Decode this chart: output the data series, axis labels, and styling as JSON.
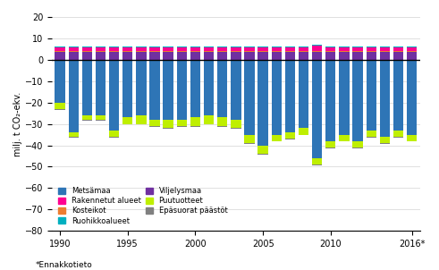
{
  "years": [
    1990,
    1991,
    1992,
    1993,
    1994,
    1995,
    1996,
    1997,
    1998,
    1999,
    2000,
    2001,
    2002,
    2003,
    2004,
    2005,
    2006,
    2007,
    2008,
    2009,
    2010,
    2011,
    2012,
    2013,
    2014,
    2015,
    2016
  ],
  "metsamaa": [
    -20,
    -34,
    -26,
    -26,
    -33,
    -27,
    -26,
    -28,
    -28,
    -28,
    -27,
    -26,
    -27,
    -28,
    -35,
    -40,
    -35,
    -34,
    -32,
    -46,
    -38,
    -35,
    -38,
    -33,
    -36,
    -33,
    -35
  ],
  "puutuotteet": [
    -3,
    -2,
    -2,
    -2,
    -3,
    -3,
    -4,
    -3,
    -4,
    -3,
    -4,
    -4,
    -4,
    -4,
    -4,
    -4,
    -3,
    -3,
    -3,
    -3,
    -3,
    -3,
    -3,
    -3,
    -3,
    -3,
    -3
  ],
  "epasuorat": [
    -0.3,
    -0.3,
    -0.3,
    -0.3,
    -0.3,
    -0.3,
    -0.3,
    -0.3,
    -0.3,
    -0.3,
    -0.3,
    -0.3,
    -0.3,
    -0.3,
    -0.3,
    -0.3,
    -0.3,
    -0.3,
    -0.3,
    -0.3,
    -0.3,
    -0.3,
    -0.3,
    -0.3,
    -0.3,
    -0.3,
    -0.3
  ],
  "viljelysmaa": [
    3.5,
    3.5,
    3.5,
    3.5,
    3.5,
    3.5,
    3.5,
    3.5,
    3.5,
    3.5,
    3.5,
    3.5,
    3.5,
    3.5,
    3.5,
    3.5,
    3.5,
    3.5,
    3.5,
    3.5,
    3.5,
    3.5,
    3.5,
    3.5,
    3.5,
    3.5,
    3.5
  ],
  "kosteikot": [
    0.6,
    0.6,
    0.6,
    0.6,
    0.6,
    0.6,
    0.6,
    0.6,
    0.6,
    0.6,
    0.6,
    0.6,
    0.6,
    0.6,
    0.6,
    0.6,
    0.6,
    0.6,
    0.6,
    0.6,
    0.6,
    0.6,
    0.6,
    0.6,
    0.6,
    0.6,
    0.6
  ],
  "rakennetut": [
    1.5,
    1.5,
    1.5,
    1.5,
    1.5,
    1.5,
    1.5,
    1.5,
    1.5,
    1.5,
    1.5,
    1.5,
    1.5,
    1.5,
    1.5,
    1.5,
    1.5,
    1.5,
    1.8,
    2.5,
    1.5,
    1.5,
    1.5,
    1.5,
    1.5,
    1.5,
    1.5
  ],
  "ruohikkoalueet": [
    0.4,
    0.4,
    0.4,
    0.4,
    0.4,
    0.4,
    0.4,
    0.4,
    0.4,
    0.4,
    0.4,
    0.4,
    0.4,
    0.4,
    0.4,
    0.4,
    0.4,
    0.4,
    0.4,
    0.4,
    0.4,
    0.4,
    0.4,
    0.4,
    0.4,
    0.4,
    0.4
  ],
  "colors": {
    "metsamaa": "#2E75B6",
    "kosteikot": "#ED7D31",
    "viljelysmaa": "#7030A0",
    "epasuorat": "#808080",
    "puutuotteet": "#BFEF00",
    "rakennetut": "#FF0090",
    "ruohikkoalueet": "#00B0C0"
  },
  "ylabel": "milj. t CO₂-ekv.",
  "ylim": [
    -80,
    20
  ],
  "yticks": [
    -80,
    -70,
    -60,
    -50,
    -40,
    -30,
    -20,
    -10,
    0,
    10,
    20
  ],
  "footnote": "*Ennakkotieto"
}
